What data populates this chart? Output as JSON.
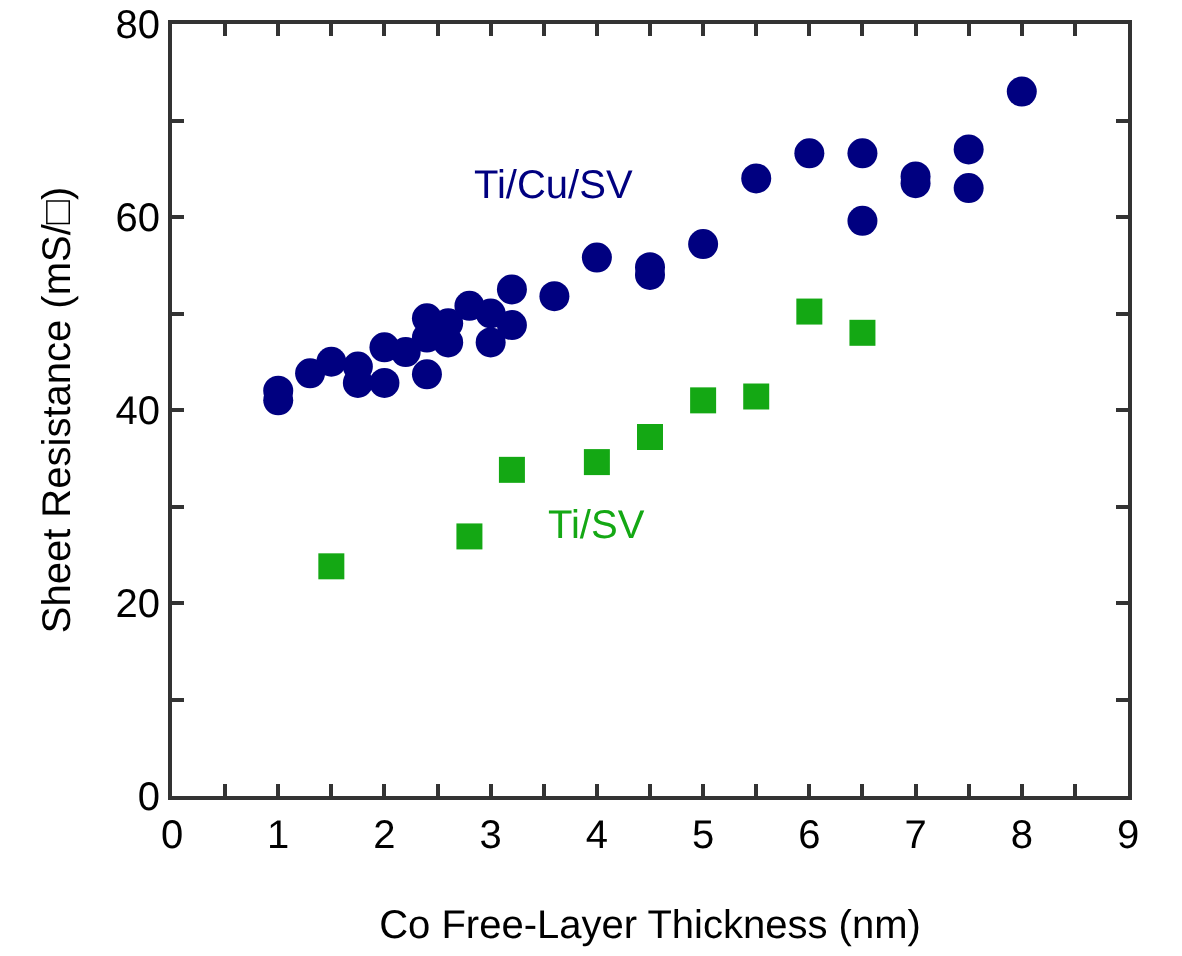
{
  "chart_data": {
    "type": "scatter",
    "xlabel": "Co Free-Layer Thickness (nm)",
    "ylabel": "Sheet Resistance (mS/□)",
    "xlim": [
      0,
      9
    ],
    "ylim": [
      0,
      80
    ],
    "xticks": [
      0,
      {
        "value": 0.5,
        "label": null
      },
      1,
      {
        "value": 1.5,
        "label": null
      },
      2,
      {
        "value": 2.5,
        "label": null
      },
      3,
      {
        "value": 3.5,
        "label": null
      },
      4,
      {
        "value": 4.5,
        "label": null
      },
      5,
      {
        "value": 5.5,
        "label": null
      },
      6,
      {
        "value": 6.5,
        "label": null
      },
      7,
      {
        "value": 7.5,
        "label": null
      },
      8,
      {
        "value": 8.5,
        "label": null
      },
      9
    ],
    "yticks": [
      0,
      {
        "value": 10,
        "label": null
      },
      20,
      {
        "value": 30,
        "label": null
      },
      40,
      {
        "value": 50,
        "label": null
      },
      60,
      {
        "value": 70,
        "label": null
      },
      80
    ],
    "grid": false,
    "legend": false,
    "series": [
      {
        "name": "Ti/Cu/SV",
        "color": "#000080",
        "marker": "circle",
        "x": [
          1,
          1,
          1.3,
          1.5,
          1.75,
          1.75,
          2,
          2,
          2.2,
          2.4,
          2.4,
          2.4,
          2.6,
          2.6,
          2.8,
          3,
          3,
          3.2,
          3.2,
          3.6,
          4,
          4.5,
          4.5,
          5,
          5.5,
          6,
          6.5,
          6.5,
          7,
          7,
          7.5,
          7.5,
          8
        ],
        "values": [
          42,
          41,
          43.8,
          45,
          44.5,
          42.8,
          46.5,
          42.8,
          46,
          49.5,
          47.5,
          43.7,
          49,
          47,
          50.8,
          50,
          47,
          52.5,
          48.8,
          51.8,
          55.8,
          54.8,
          54,
          57.2,
          64,
          66.6,
          66.6,
          59.6,
          64.2,
          63.5,
          67,
          63,
          73
        ]
      },
      {
        "name": "Ti/SV",
        "color": "#14a814",
        "marker": "square",
        "x": [
          1.5,
          2.8,
          3.2,
          4,
          4.5,
          5,
          5.5,
          6,
          6.5
        ],
        "values": [
          23.8,
          26.9,
          33.8,
          34.6,
          37.2,
          41,
          41.4,
          50.2,
          48
        ]
      }
    ]
  }
}
